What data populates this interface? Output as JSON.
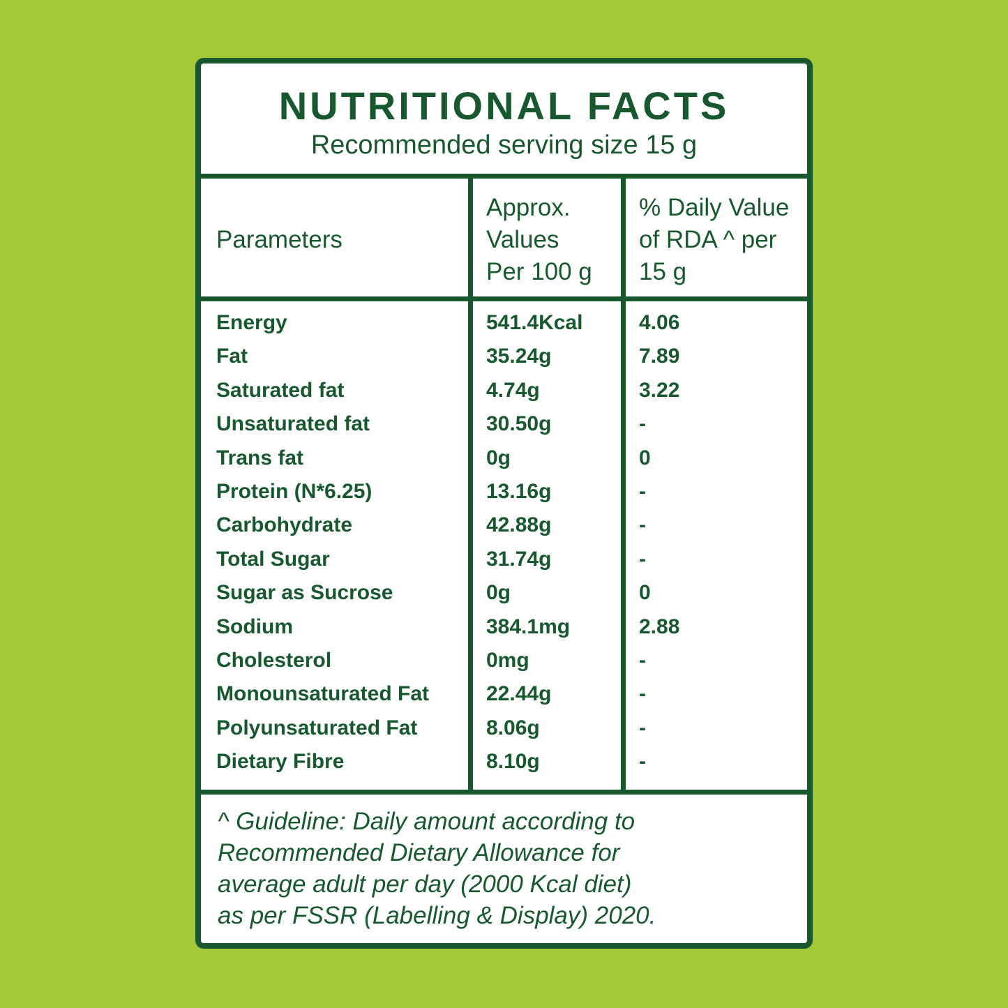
{
  "header": {
    "title": "NUTRITIONAL FACTS",
    "subtitle": "Recommended serving size 15 g"
  },
  "table": {
    "header": [
      [
        "Parameters"
      ],
      [
        "Approx.",
        "Values",
        "Per 100 g"
      ],
      [
        "% Daily Value",
        "of RDA ^ per",
        "15 g"
      ]
    ],
    "rows": [
      [
        "Energy",
        "541.4Kcal",
        "4.06"
      ],
      [
        "Fat",
        "35.24g",
        "7.89"
      ],
      [
        "Saturated fat",
        "4.74g",
        "3.22"
      ],
      [
        "Unsaturated fat",
        "30.50g",
        "-"
      ],
      [
        "Trans fat",
        "0g",
        "0"
      ],
      [
        "Protein (N*6.25)",
        "13.16g",
        "-"
      ],
      [
        "Carbohydrate",
        "42.88g",
        "-"
      ],
      [
        "Total Sugar",
        "31.74g",
        "-"
      ],
      [
        "Sugar as Sucrose",
        "0g",
        "0"
      ],
      [
        "Sodium",
        "384.1mg",
        "2.88"
      ],
      [
        "Cholesterol",
        "0mg",
        "-"
      ],
      [
        "Monounsaturated Fat",
        "22.44g",
        "-"
      ],
      [
        "Polyunsaturated Fat",
        "8.06g",
        "-"
      ],
      [
        "Dietary Fibre",
        "8.10g",
        "-"
      ]
    ]
  },
  "footnote": [
    "^ Guideline: Daily amount according to",
    "Recommended Dietary Allowance for",
    "average adult per day (2000 Kcal diet)",
    "as per FSSR (Labelling & Display) 2020."
  ]
}
